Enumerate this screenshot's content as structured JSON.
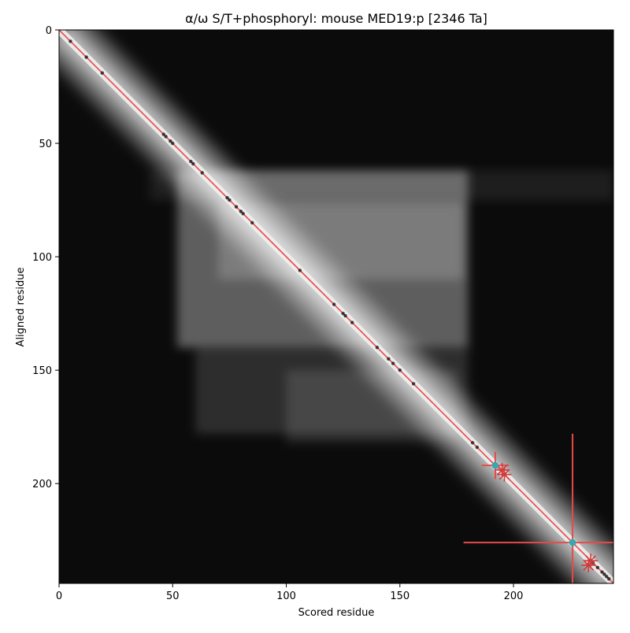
{
  "chart_data": {
    "type": "heatmap",
    "title": "α/ω S/T+phosphoryl: mouse MED19:p [2346 Ta]",
    "xlabel": "Scored residue",
    "ylabel": "Aligned residue",
    "n_residues": 244,
    "xlim": [
      0,
      244
    ],
    "ylim": [
      244,
      0
    ],
    "x_ticks": [
      0,
      50,
      100,
      150,
      200
    ],
    "y_ticks": [
      0,
      50,
      100,
      150,
      200
    ],
    "x_tick_labels": [
      "0",
      "50",
      "100",
      "150",
      "200"
    ],
    "y_tick_labels": [
      "0",
      "50",
      "100",
      "150",
      "200"
    ],
    "colormap": "grayscale (black = low, white = high)",
    "grid": false,
    "diagonal_line_color": "#e84a4a",
    "high_signal_blocks": [
      {
        "x": [
          52,
          180
        ],
        "y": [
          62,
          140
        ],
        "intensity": 0.34
      },
      {
        "x": [
          70,
          178
        ],
        "y": [
          76,
          110
        ],
        "intensity": 0.18
      },
      {
        "x": [
          40,
          244
        ],
        "y": [
          62,
          75
        ],
        "intensity": 0.08
      },
      {
        "x": [
          60,
          180
        ],
        "y": [
          140,
          178
        ],
        "intensity": 0.14
      },
      {
        "x": [
          100,
          175
        ],
        "y": [
          150,
          182
        ],
        "intensity": 0.12
      }
    ],
    "phospho_sites": [
      5,
      12,
      19,
      46,
      47,
      49,
      50,
      58,
      59,
      63,
      74,
      75,
      78,
      80,
      81,
      85,
      106,
      121,
      125,
      126,
      129,
      140,
      145,
      147,
      150,
      156,
      182,
      184,
      235,
      237,
      239,
      240,
      241,
      242
    ],
    "highlighted_residues": [
      {
        "residue": 192,
        "color": "#3aa6b0",
        "cross_extent": 6
      },
      {
        "residue": 226,
        "color": "#3aa6b0",
        "cross_extent": 48
      }
    ],
    "star_markers": [
      {
        "x": 195,
        "y": 194
      },
      {
        "x": 196,
        "y": 196
      },
      {
        "x": 234,
        "y": 234
      },
      {
        "x": 233,
        "y": 236
      }
    ],
    "star_color": "#d23b3b"
  }
}
